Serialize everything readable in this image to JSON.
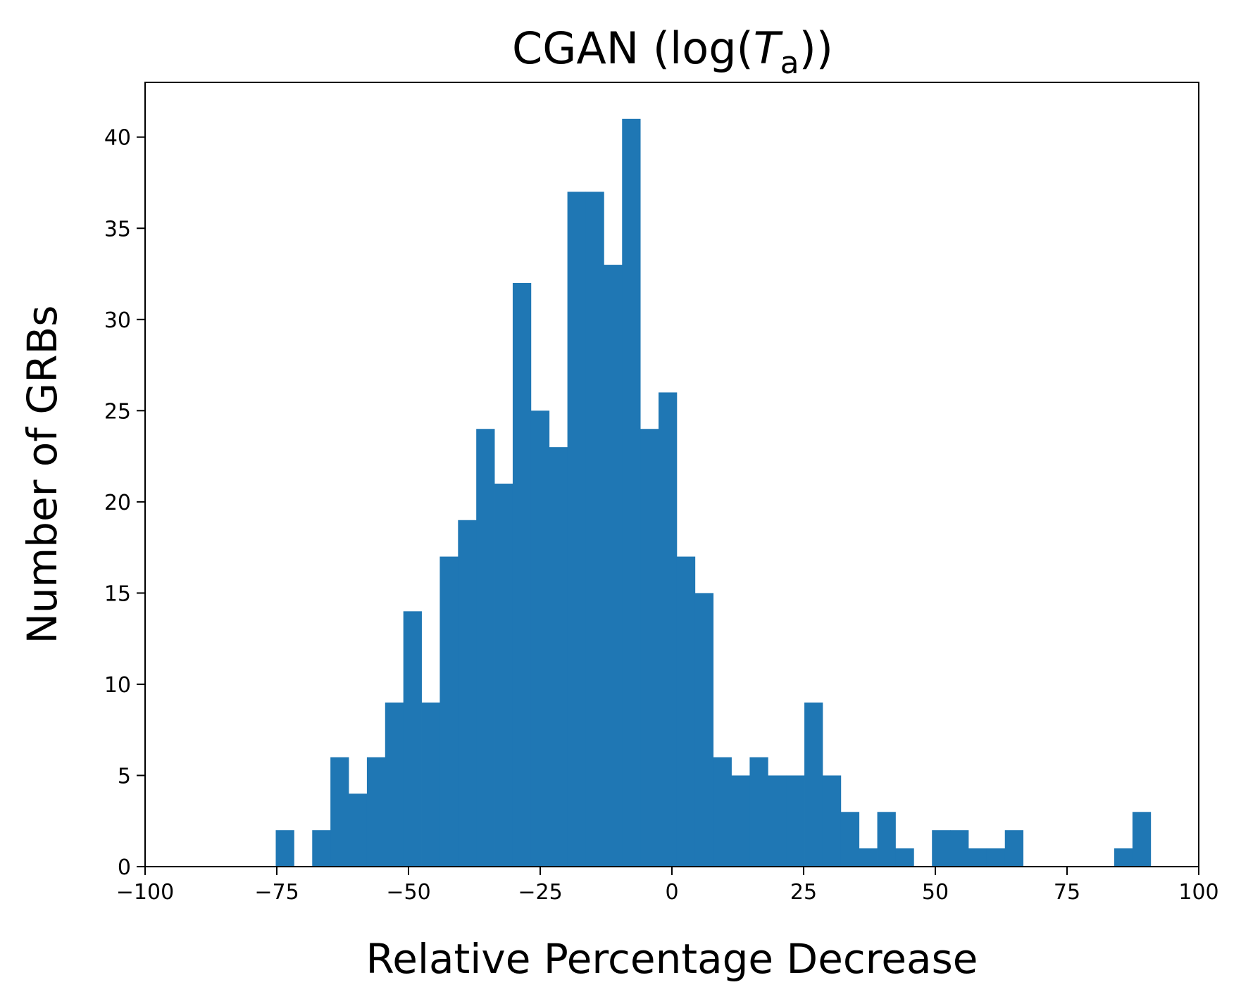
{
  "chart_data": {
    "type": "histogram",
    "title": {
      "prefix": "CGAN (log(",
      "italic": "T",
      "subscript": "a",
      "suffix": "))"
    },
    "xlabel": "Relative Percentage Decrease",
    "ylabel": "Number of GRBs",
    "xlim": [
      -100,
      100
    ],
    "ylim": [
      0,
      43
    ],
    "x_ticks": [
      -100,
      -75,
      -50,
      -25,
      0,
      25,
      50,
      75,
      100
    ],
    "x_tick_labels": [
      "−100",
      "−75",
      "−50",
      "−25",
      "0",
      "25",
      "50",
      "75",
      "100"
    ],
    "y_ticks": [
      0,
      5,
      10,
      15,
      20,
      25,
      30,
      35,
      40
    ],
    "y_tick_labels": [
      "0",
      "5",
      "10",
      "15",
      "20",
      "25",
      "30",
      "35",
      "40"
    ],
    "grid": false,
    "bar_color": "#1f77b4",
    "bin_start": -75.2,
    "bin_width": 3.46,
    "counts": [
      2,
      0,
      2,
      6,
      4,
      6,
      9,
      14,
      9,
      17,
      19,
      24,
      21,
      32,
      25,
      23,
      37,
      37,
      33,
      41,
      24,
      26,
      17,
      15,
      6,
      5,
      6,
      5,
      5,
      9,
      5,
      3,
      1,
      3,
      1,
      0,
      2,
      2,
      1,
      1,
      2,
      0,
      0,
      0,
      0,
      0,
      1,
      3
    ]
  }
}
